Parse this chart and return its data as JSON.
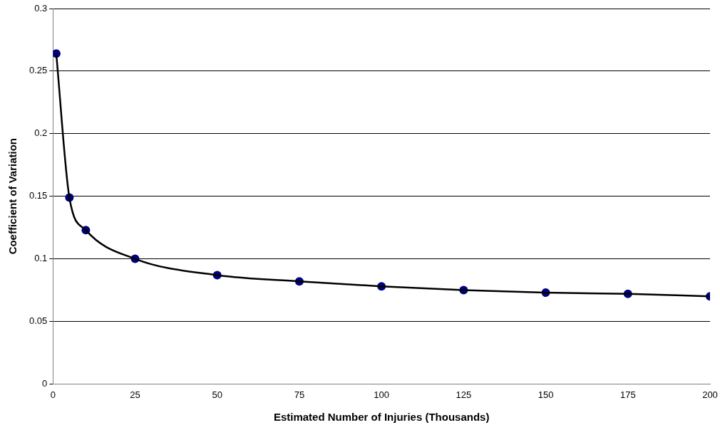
{
  "chart_data": {
    "type": "line",
    "xlabel": "Estimated Number of Injuries (Thousands)",
    "ylabel": "Coefficient of Variation",
    "x": [
      1,
      5,
      10,
      25,
      50,
      75,
      100,
      125,
      150,
      175,
      200
    ],
    "series": [
      {
        "type": "line",
        "color": "#000000",
        "marker": "none",
        "values": [
          0.264,
          0.149,
          0.123,
          0.1,
          0.087,
          0.082,
          0.078,
          0.075,
          0.073,
          0.072,
          0.07
        ]
      },
      {
        "type": "scatter",
        "color": "#000080",
        "marker": "circle",
        "values": [
          0.264,
          0.149,
          0.123,
          0.1,
          0.087,
          0.082,
          0.078,
          0.075,
          0.073,
          0.072,
          0.07
        ]
      }
    ],
    "xlim": [
      0,
      200
    ],
    "xticks": [
      0,
      25,
      50,
      75,
      100,
      125,
      150,
      175,
      200
    ],
    "ylim": [
      0,
      0.3
    ],
    "yticks": [
      0,
      0.05,
      0.1,
      0.15,
      0.2,
      0.25,
      0.3
    ],
    "grid": "y",
    "legend": false
  }
}
